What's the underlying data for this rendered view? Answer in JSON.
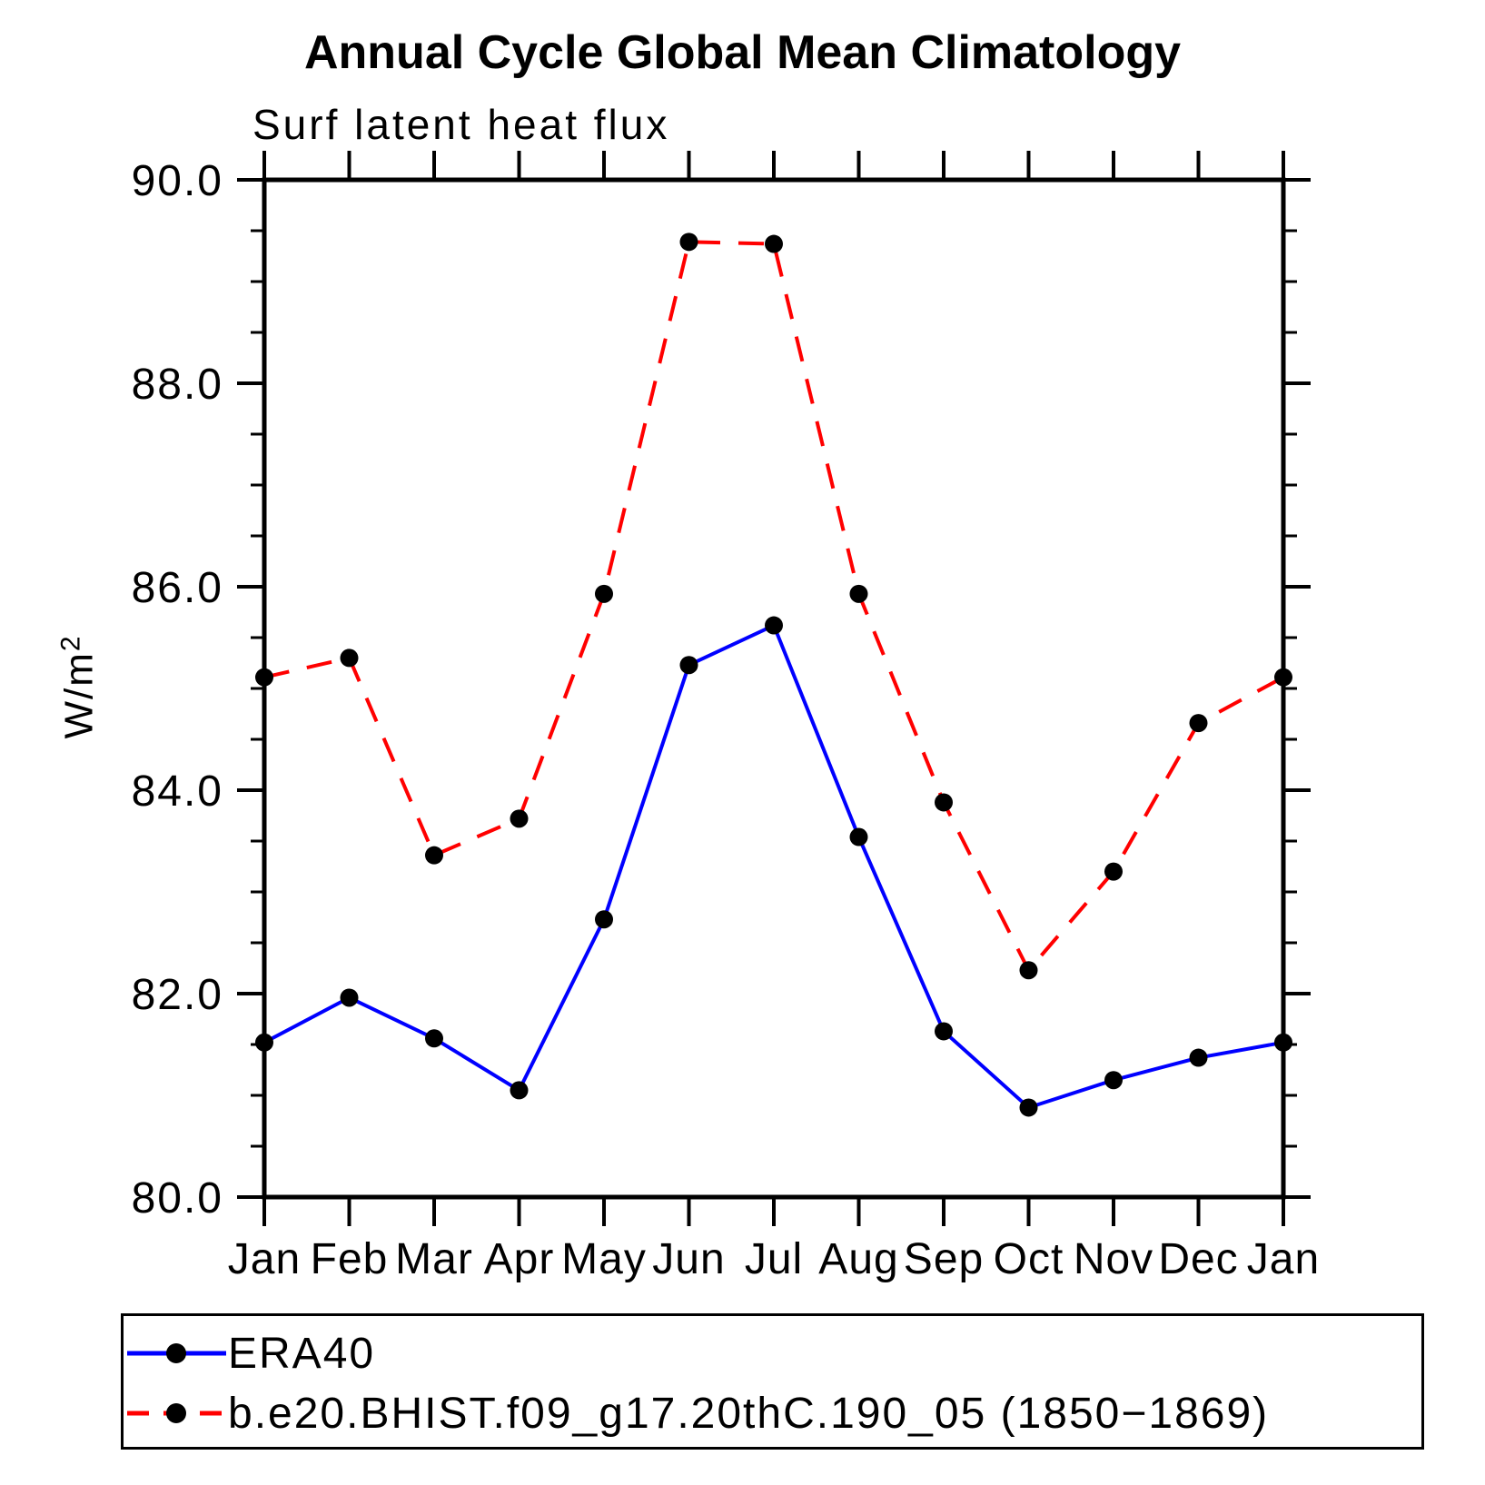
{
  "chart_data": {
    "type": "line",
    "title": "Annual Cycle Global Mean Climatology",
    "subtitle": "Surf latent heat flux",
    "ylabel": "W/m²",
    "ylabel_base": "W/m",
    "ylabel_exp": "2",
    "xlabel": "",
    "categories": [
      "Jan",
      "Feb",
      "Mar",
      "Apr",
      "May",
      "Jun",
      "Jul",
      "Aug",
      "Sep",
      "Oct",
      "Nov",
      "Dec",
      "Jan"
    ],
    "ylim": [
      80.0,
      90.0
    ],
    "y_major_ticks": [
      80.0,
      82.0,
      84.0,
      86.0,
      88.0,
      90.0
    ],
    "y_tick_labels": [
      "80.0",
      "82.0",
      "84.0",
      "86.0",
      "88.0",
      "90.0"
    ],
    "y_minor_step": 0.5,
    "grid": false,
    "legend_position": "bottom",
    "axis_color": "#000000",
    "marker_color": "#000000",
    "series": [
      {
        "name": "ERA40",
        "color": "#0000ff",
        "line_style": "solid",
        "marker": "filled-circle",
        "values": [
          81.52,
          81.96,
          81.56,
          81.05,
          82.73,
          85.23,
          85.62,
          83.54,
          81.63,
          80.88,
          81.15,
          81.37,
          81.52
        ]
      },
      {
        "name": "b.e20.BHIST.f09_g17.20thC.190_05 (1850−1869)",
        "color": "#ff0000",
        "line_style": "dashed",
        "marker": "filled-circle",
        "values": [
          85.11,
          85.3,
          83.36,
          83.72,
          85.93,
          89.39,
          89.37,
          85.93,
          83.88,
          82.23,
          83.2,
          84.66,
          85.11
        ]
      }
    ]
  }
}
